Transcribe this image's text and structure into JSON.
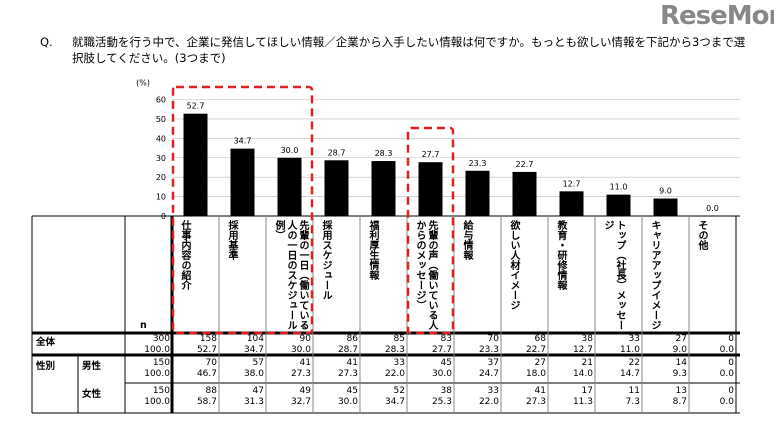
{
  "question": {
    "number": "Q.",
    "text": "就職活動を行う中で、企業に発信してほしい情報／企業から入手したい情報は何ですか。もっとも欲しい情報を下記から3つまで選択肢してください。(3つまで)"
  },
  "chart_data": {
    "type": "bar",
    "ylabel": "(%)",
    "ylim": [
      0,
      60
    ],
    "yticks": [
      0,
      10,
      20,
      30,
      40,
      50,
      60
    ],
    "grid": true,
    "categories": [
      "仕事内容の紹介",
      "採用基準",
      "先輩の一日（働いている人の一日のスケジュール例）",
      "採用スケジュール",
      "福利厚生情報",
      "先輩の声（働いている人からのメッセージ）",
      "給与情報",
      "欲しい人材イメージ",
      "教育・研修情報",
      "トップ（社長）メッセージ",
      "キャリアアップイメージ",
      "その他"
    ],
    "values": [
      52.7,
      34.7,
      30.0,
      28.7,
      28.3,
      27.7,
      23.3,
      22.7,
      12.7,
      11.0,
      9.0,
      0.0
    ],
    "bar_color": "#000000",
    "highlight_color": "#e02020",
    "highlighted_categories": [
      [
        0,
        2
      ],
      [
        5,
        5
      ]
    ]
  },
  "table": {
    "n_label": "n",
    "rows": [
      {
        "group": "全体",
        "sub": "",
        "n": [
          "300",
          "100.0"
        ],
        "counts": [
          "158",
          "104",
          "90",
          "86",
          "85",
          "83",
          "70",
          "68",
          "38",
          "33",
          "27",
          "0"
        ],
        "pcts": [
          "52.7",
          "34.7",
          "30.0",
          "28.7",
          "28.3",
          "27.7",
          "23.3",
          "22.7",
          "12.7",
          "11.0",
          "9.0",
          "0.0"
        ]
      },
      {
        "group": "性別",
        "sub": "男性",
        "n": [
          "150",
          "100.0"
        ],
        "counts": [
          "70",
          "57",
          "41",
          "41",
          "33",
          "45",
          "37",
          "27",
          "21",
          "22",
          "14",
          "0"
        ],
        "pcts": [
          "46.7",
          "38.0",
          "27.3",
          "27.3",
          "22.0",
          "30.0",
          "24.7",
          "18.0",
          "14.0",
          "14.7",
          "9.3",
          "0.0"
        ]
      },
      {
        "group": "",
        "sub": "女性",
        "n": [
          "150",
          "100.0"
        ],
        "counts": [
          "88",
          "47",
          "49",
          "45",
          "52",
          "38",
          "33",
          "41",
          "17",
          "11",
          "13",
          "0"
        ],
        "pcts": [
          "58.7",
          "31.3",
          "32.7",
          "30.0",
          "34.7",
          "25.3",
          "22.0",
          "27.3",
          "11.3",
          "7.3",
          "8.7",
          "0.0"
        ]
      }
    ]
  },
  "watermark": "ReseMom"
}
